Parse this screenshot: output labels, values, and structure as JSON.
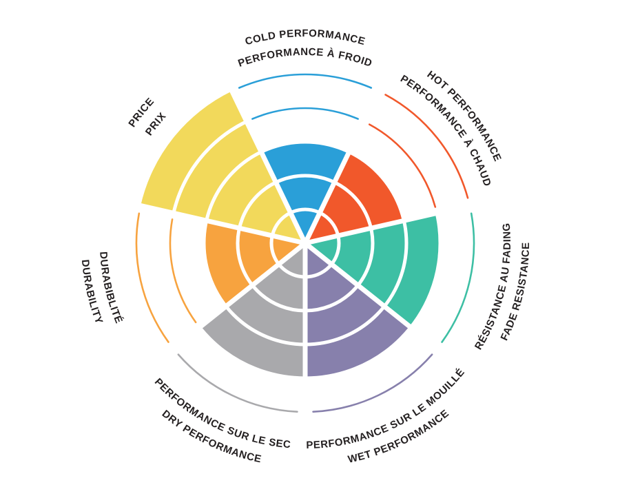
{
  "page": {
    "background": "#ffffff",
    "text_color": "#231F20",
    "description": "Tire rating wheel: seven colored sectors on a 5-ring polar scale with bilingual curved labels"
  },
  "chart_data": {
    "type": "pie",
    "subtype": "polar-rating-wheel",
    "title": "",
    "legend": false,
    "grid": "concentric-rings",
    "scale": {
      "rings": 5,
      "min": 0,
      "max": 5
    },
    "layout_hints": {
      "start_sector": "cold-performance centered at 12 o'clock",
      "direction": "clockwise",
      "unfilled_rings_shown_as": "thin arcs in sector color",
      "ring_divider_color": "#ffffff",
      "labels": "curved along circle outside chart, English line outermost, French line nearer the wheel"
    },
    "categories": [
      {
        "id": "cold-performance",
        "label_en": "COLD PERFORMANCE",
        "label_fr": "PERFORMANCE À FROID",
        "value": 3,
        "color": "#2A9FD8"
      },
      {
        "id": "hot-performance",
        "label_en": "HOT PERFORMANCE",
        "label_fr": "PERFORMANCE À CHAUD",
        "value": 3,
        "color": "#F1582B"
      },
      {
        "id": "fade-resistance",
        "label_en": "FADE RESISTANCE",
        "label_fr": "RÉSISTANCE AU FADING",
        "value": 4,
        "color": "#3DBFA4"
      },
      {
        "id": "wet-performance",
        "label_en": "WET PERFORMANCE",
        "label_fr": "PERFORMANCE SUR LE MOUILLÉ",
        "value": 4,
        "color": "#8780AC"
      },
      {
        "id": "dry-performance",
        "label_en": "DRY PERFORMANCE",
        "label_fr": "PERFORMANCE SUR LE SEC",
        "value": 4,
        "color": "#A9A9AC"
      },
      {
        "id": "durability",
        "label_en": "DURABILITY",
        "label_fr": "DURABIBLITÉ",
        "value": 3,
        "color": "#F7A33F"
      },
      {
        "id": "price",
        "label_en": "PRICE",
        "label_fr": "PRIX",
        "value": 5,
        "color": "#F2D95B"
      }
    ]
  }
}
